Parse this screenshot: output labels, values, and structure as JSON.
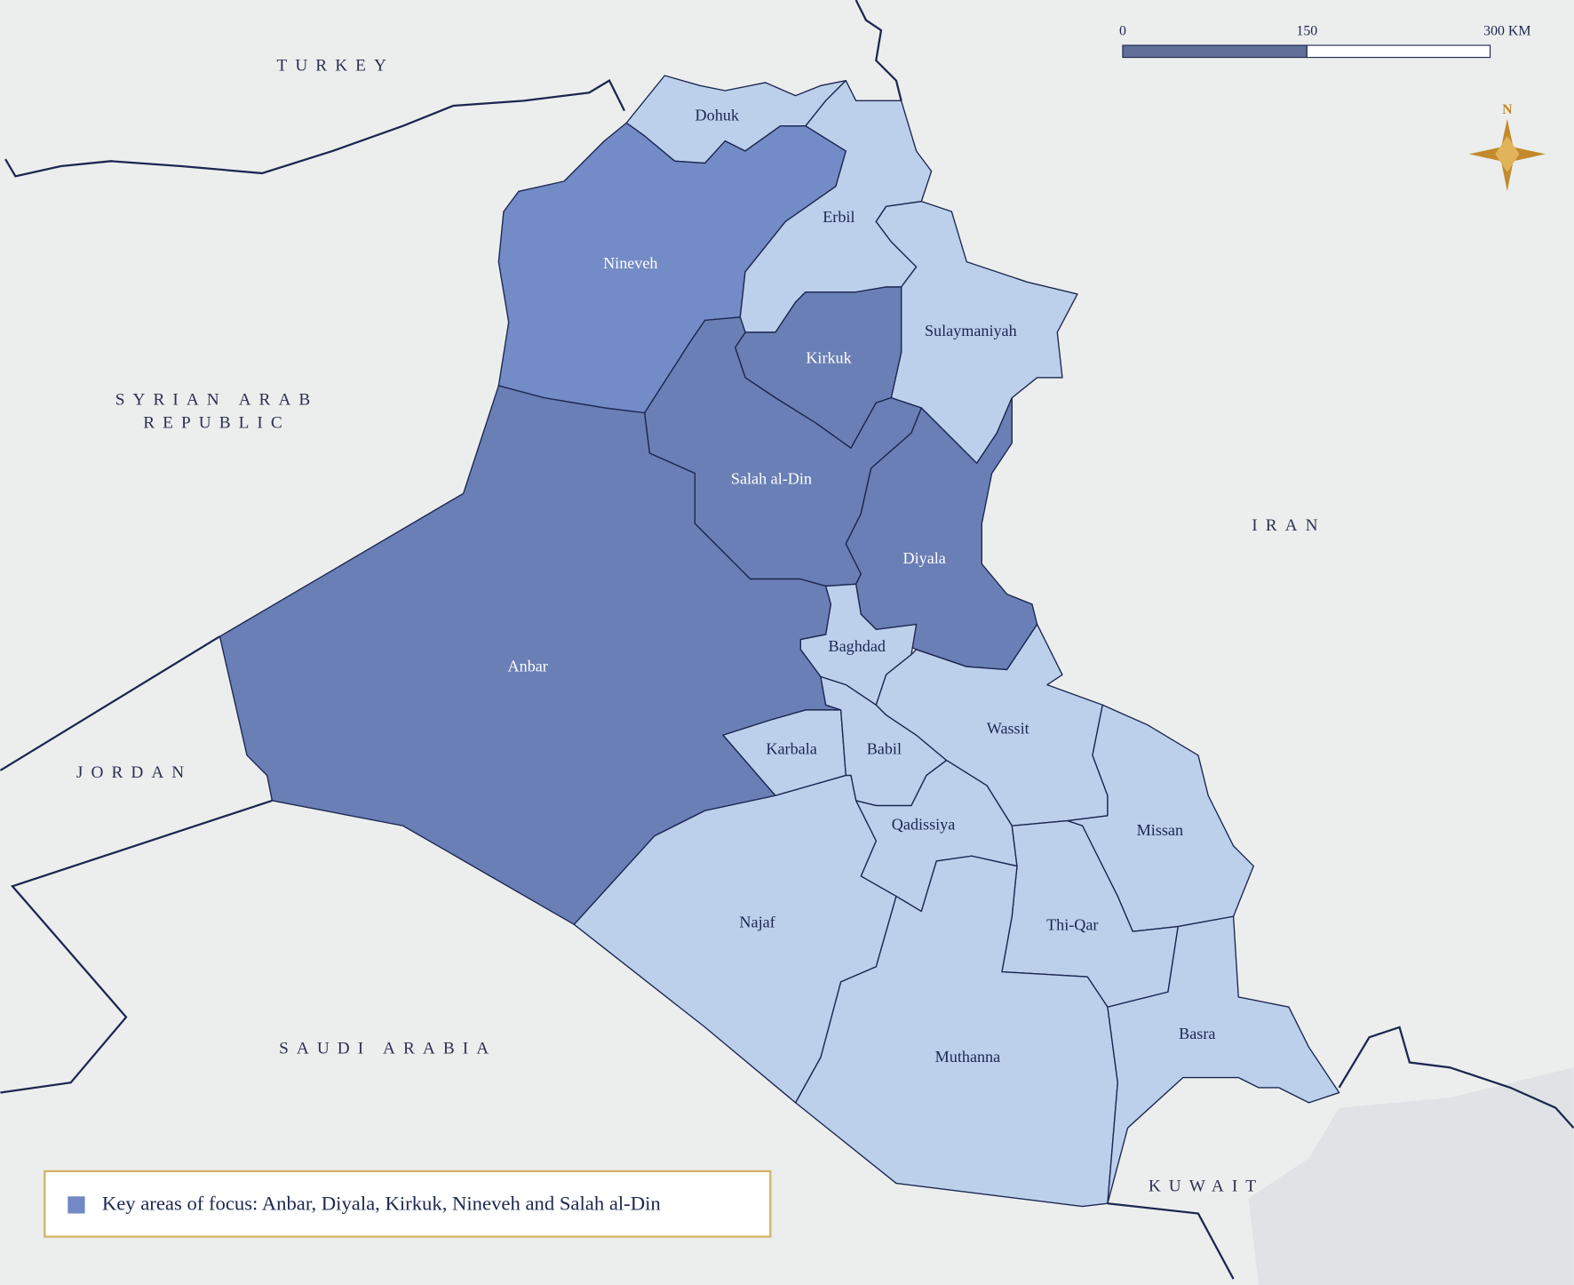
{
  "countries": [
    "TURKEY",
    "SYRIAN ARAB",
    "REPUBLIC",
    "IRAN",
    "JORDAN",
    "SAUDI ARABIA",
    "KUWAIT"
  ],
  "scale_bar": {
    "labels": [
      "0",
      "150",
      "300 KM"
    ]
  },
  "compass": "N",
  "provinces": [
    {
      "name": "Dohuk",
      "color": "#bcd0ec"
    },
    {
      "name": "Nineveh",
      "color": "#738bc6"
    },
    {
      "name": "Erbil",
      "color": "#bcd0ec"
    },
    {
      "name": "Sulaymaniyah",
      "color": "#bcd0ec"
    },
    {
      "name": "Kirkuk",
      "color": "#6a7fb5"
    },
    {
      "name": "Salah al-Din",
      "color": "#6a7fb5"
    },
    {
      "name": "Diyala",
      "color": "#6a7fb5"
    },
    {
      "name": "Baghdad",
      "color": "#bcd0ec"
    },
    {
      "name": "Anbar",
      "color": "#6a7fb5"
    },
    {
      "name": "Karbala",
      "color": "#bcd0ec"
    },
    {
      "name": "Babil",
      "color": "#bcd0ec"
    },
    {
      "name": "Wassit",
      "color": "#bcd0ec"
    },
    {
      "name": "Qadissiya",
      "color": "#bcd0ec"
    },
    {
      "name": "Missan",
      "color": "#bcd0ec"
    },
    {
      "name": "Thi-Qar",
      "color": "#bcd0ec"
    },
    {
      "name": "Najaf",
      "color": "#bcd0ec"
    },
    {
      "name": "Muthanna",
      "color": "#bcd0ec"
    },
    {
      "name": "Basra",
      "color": "#bcd0ec"
    }
  ],
  "legend": {
    "text": "Key areas of focus: Anbar, Diyala, Kirkuk, Nineveh and Salah al-Din",
    "color": "#7389c4"
  }
}
